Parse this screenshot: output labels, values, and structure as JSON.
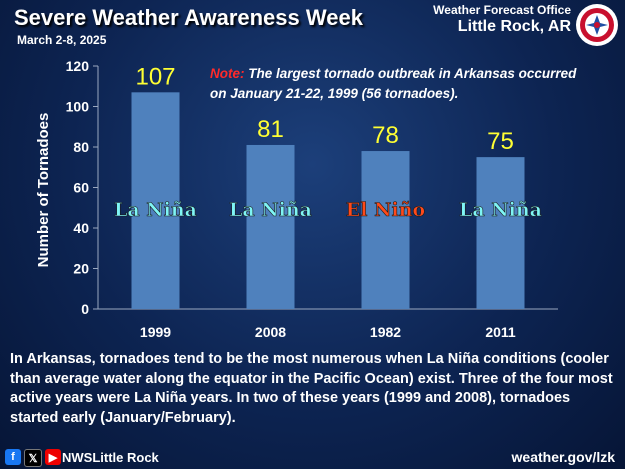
{
  "header": {
    "title": "Severe Weather Awareness Week",
    "dates": "March 2-8, 2025",
    "office_line1": "Weather Forecast Office",
    "office_line2": "Little Rock, AR",
    "logo_icon": "noaa-nws-logo"
  },
  "note": {
    "label": "Note:",
    "text": "The largest tornado outbreak in Arkansas occurred on January 21-22, 1999 (56 tornadoes)."
  },
  "chart_data": {
    "type": "bar",
    "categories": [
      "1999",
      "2008",
      "1982",
      "2011"
    ],
    "values": [
      107,
      81,
      78,
      75
    ],
    "data_labels": [
      "107",
      "81",
      "78",
      "75"
    ],
    "phases": [
      "La Niña",
      "La Niña",
      "El Niño",
      "La Niña"
    ],
    "phase_colors": [
      "#7ff5f5",
      "#7ff5f5",
      "#ff4a1a",
      "#7ff5f5"
    ],
    "ylabel": "Number of Tornadoes",
    "xlabel": "",
    "ylim": [
      0,
      120
    ],
    "yticks": [
      0,
      20,
      40,
      60,
      80,
      100,
      120
    ],
    "grid": false,
    "bar_color": "#4f81bd",
    "label_color": "#ffff33"
  },
  "caption": "In Arkansas, tornadoes tend to be the most numerous when La Niña conditions (cooler than average water along the equator in the Pacific Ocean) exist. Three of the four most active years were La Niña years. In two of these years (1999 and 2008), tornadoes started early (January/February).",
  "footer": {
    "handle": "NWSLittle Rock",
    "website": "weather.gov/lzk",
    "social_icons": [
      "facebook-icon",
      "x-icon",
      "youtube-icon"
    ]
  }
}
